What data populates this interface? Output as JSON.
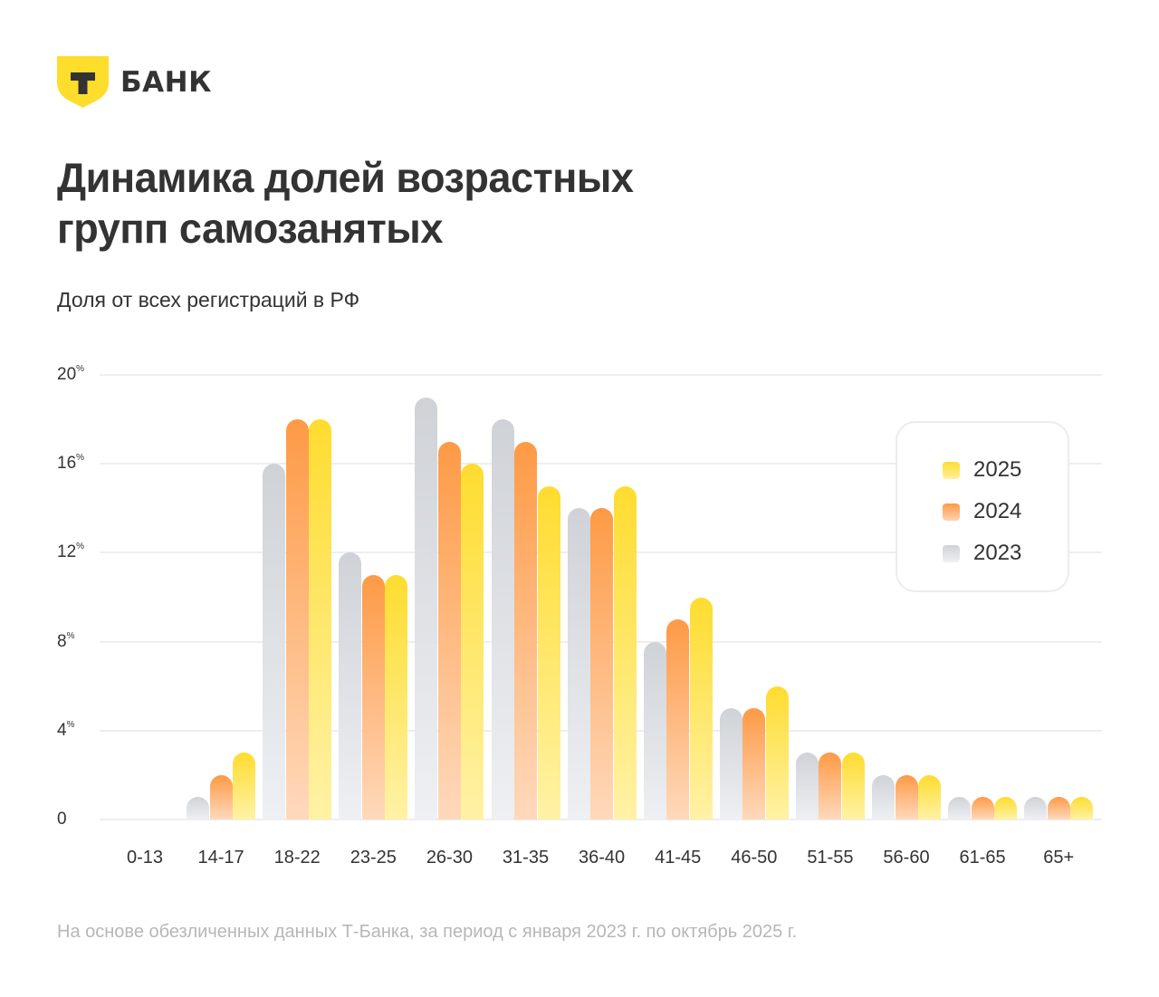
{
  "brand": {
    "logo_letter": "Т",
    "name": "БАНК",
    "shield_color": "#fedd2c",
    "text_color": "#333333"
  },
  "header": {
    "title_line1": "Динамика долей возрастных",
    "title_line2": "групп самозанятых",
    "subtitle": "Доля от всех регистраций в РФ"
  },
  "legend": {
    "items": [
      {
        "label": "2025",
        "color": "#fedc2f"
      },
      {
        "label": "2024",
        "color": "#fd9a45"
      },
      {
        "label": "2023",
        "color": "#cfd2d7"
      }
    ]
  },
  "footnote": "На основе обезличенных данных Т-Банка, за период с января 2023 г. по октябрь 2025 г.",
  "chart_data": {
    "type": "bar",
    "title": "Динамика долей возрастных групп самозанятых",
    "subtitle": "Доля от всех регистраций в РФ",
    "xlabel": "",
    "ylabel": "",
    "unit": "%",
    "ylim": [
      0,
      20
    ],
    "yticks": [
      {
        "value": 20,
        "label": "20",
        "suffix": "%"
      },
      {
        "value": 16,
        "label": "16",
        "suffix": "%"
      },
      {
        "value": 12,
        "label": "12",
        "suffix": "%"
      },
      {
        "value": 8,
        "label": "8",
        "suffix": "%"
      },
      {
        "value": 4,
        "label": "4",
        "suffix": "%"
      },
      {
        "value": 0,
        "label": "0",
        "suffix": ""
      }
    ],
    "grid": true,
    "legend_position": "right-inside",
    "categories": [
      "0-13",
      "14-17",
      "18-22",
      "23-25",
      "26-30",
      "31-35",
      "36-40",
      "41-45",
      "46-50",
      "51-55",
      "56-60",
      "61-65",
      "65+"
    ],
    "series": [
      {
        "name": "2023",
        "color": "#cfd2d7",
        "values": [
          0,
          1,
          16,
          12,
          19,
          18,
          14,
          8,
          5,
          3,
          2,
          1,
          1
        ]
      },
      {
        "name": "2024",
        "color": "#fd9a45",
        "values": [
          0,
          2,
          18,
          11,
          17,
          17,
          14,
          9,
          5,
          3,
          2,
          1,
          1
        ]
      },
      {
        "name": "2025",
        "color": "#fedc2f",
        "values": [
          0,
          3,
          18,
          11,
          16,
          15,
          15,
          10,
          6,
          3,
          2,
          1,
          1
        ]
      }
    ],
    "footnote": "На основе обезличенных данных Т-Банка, за период с января 2023 г. по октябрь 2025 г."
  }
}
